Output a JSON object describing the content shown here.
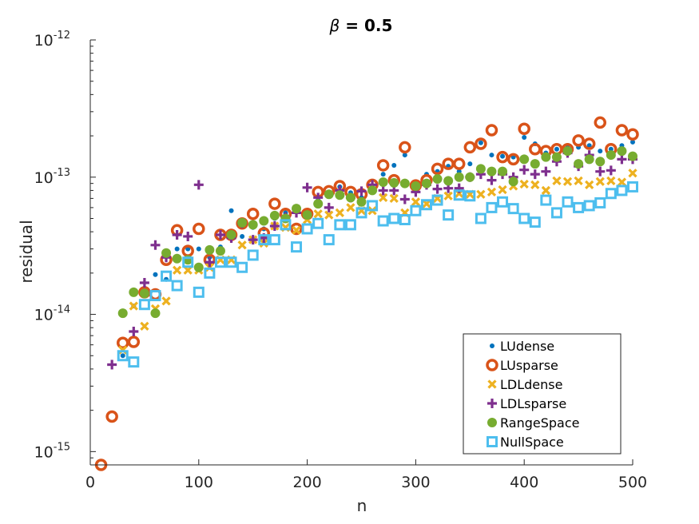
{
  "chart_data": {
    "type": "scatter",
    "title_symbol": "β",
    "title_rest": " = 0.5",
    "xlabel": "n",
    "ylabel": "residual",
    "x_scale": "linear",
    "y_scale": "log",
    "xlim": [
      0,
      500
    ],
    "ylim": [
      8e-16,
      1e-12
    ],
    "x_ticks": [
      0,
      100,
      200,
      300,
      400,
      500
    ],
    "x_tick_labels": [
      "0",
      "100",
      "200",
      "300",
      "400",
      "500"
    ],
    "y_ticks": [
      1e-15,
      1e-14,
      1e-13,
      1e-12
    ],
    "y_tick_labels": [
      {
        "base": "10",
        "exp": "-15"
      },
      {
        "base": "10",
        "exp": "-14"
      },
      {
        "base": "10",
        "exp": "-13"
      },
      {
        "base": "10",
        "exp": "-12"
      }
    ],
    "grid": false,
    "legend_position": "bottom-right",
    "x": [
      10,
      20,
      30,
      40,
      50,
      60,
      70,
      80,
      90,
      100,
      110,
      120,
      130,
      140,
      150,
      160,
      170,
      180,
      190,
      200,
      210,
      220,
      230,
      240,
      250,
      260,
      270,
      280,
      290,
      300,
      310,
      320,
      330,
      340,
      350,
      360,
      370,
      380,
      390,
      400,
      410,
      420,
      430,
      440,
      450,
      460,
      470,
      480,
      490,
      500
    ],
    "series": [
      {
        "name": "LUdense",
        "marker": "dot",
        "color": "#0072BD",
        "values": [
          null,
          null,
          5e-15,
          1.15e-14,
          1.5e-14,
          1.95e-14,
          1.8e-14,
          3e-14,
          3e-14,
          3e-14,
          2.6e-14,
          3.1e-14,
          5.7e-14,
          3.7e-14,
          4.3e-14,
          4.2e-14,
          5e-14,
          5.5e-14,
          6e-14,
          5.2e-14,
          6.8e-14,
          7.5e-14,
          8.5e-14,
          7.7e-14,
          7.1e-14,
          8.5e-14,
          1.05e-13,
          1.22e-13,
          1.45e-13,
          8.2e-14,
          1.05e-13,
          1.1e-13,
          1.2e-13,
          1.1e-13,
          1.25e-13,
          1.78e-13,
          1.45e-13,
          1.42e-13,
          1.4e-13,
          1.95e-13,
          1.75e-13,
          1.5e-13,
          1.6e-13,
          1.7e-13,
          1.65e-13,
          1.7e-13,
          1.55e-13,
          1.6e-13,
          1.7e-13,
          1.8e-13
        ]
      },
      {
        "name": "LUsparse",
        "marker": "circle",
        "color": "#D95319",
        "values": [
          8e-16,
          1.8e-15,
          6.2e-15,
          6.3e-15,
          1.45e-14,
          1.4e-14,
          2.5e-14,
          4.1e-14,
          2.9e-14,
          4.2e-14,
          2.5e-14,
          3.8e-14,
          3.8e-14,
          4.6e-14,
          5.4e-14,
          3.9e-14,
          6.4e-14,
          5.4e-14,
          4.2e-14,
          5.4e-14,
          7.8e-14,
          7.9e-14,
          8.6e-14,
          7.8e-14,
          7.5e-14,
          8.8e-14,
          1.22e-13,
          9.5e-14,
          1.65e-13,
          8.7e-14,
          9.5e-14,
          1.15e-13,
          1.25e-13,
          1.25e-13,
          1.65e-13,
          1.75e-13,
          2.2e-13,
          1.4e-13,
          1.35e-13,
          2.25e-13,
          1.6e-13,
          1.55e-13,
          1.6e-13,
          1.6e-13,
          1.85e-13,
          1.75e-13,
          2.5e-13,
          1.6e-13,
          2.2e-13,
          2.05e-13
        ]
      },
      {
        "name": "LDLdense",
        "marker": "x",
        "color": "#EDB120",
        "values": [
          null,
          null,
          5.5e-15,
          1.15e-14,
          8.2e-15,
          1.1e-14,
          1.25e-14,
          2.1e-14,
          2.1e-14,
          2.1e-14,
          2.2e-14,
          2.5e-14,
          2.5e-14,
          3.2e-14,
          3.5e-14,
          3.3e-14,
          4.4e-14,
          4.3e-14,
          4.1e-14,
          4.9e-14,
          5.4e-14,
          5.3e-14,
          5.5e-14,
          6e-14,
          5.7e-14,
          5.7e-14,
          7.1e-14,
          7e-14,
          5.5e-14,
          6.6e-14,
          6.4e-14,
          7e-14,
          7.3e-14,
          7.6e-14,
          7.5e-14,
          7.5e-14,
          7.8e-14,
          8.1e-14,
          8.6e-14,
          8.9e-14,
          8.8e-14,
          8e-14,
          9.4e-14,
          9.3e-14,
          9.4e-14,
          8.8e-14,
          9.3e-14,
          9.4e-14,
          9.2e-14,
          1.07e-13
        ]
      },
      {
        "name": "LDLsparse",
        "marker": "plus",
        "color": "#7E2F8E",
        "values": [
          null,
          4.3e-15,
          null,
          7.5e-15,
          1.7e-14,
          3.2e-14,
          2.6e-14,
          3.8e-14,
          3.7e-14,
          8.8e-14,
          2.4e-14,
          3.8e-14,
          3.6e-14,
          4.6e-14,
          3.5e-14,
          3.6e-14,
          4.4e-14,
          5.1e-14,
          5.5e-14,
          8.4e-14,
          7.1e-14,
          6e-14,
          8e-14,
          7.1e-14,
          7.9e-14,
          8.8e-14,
          8e-14,
          8e-14,
          6.9e-14,
          7.8e-14,
          8.8e-14,
          8.2e-14,
          8.3e-14,
          8.3e-14,
          1e-13,
          1.05e-13,
          9.5e-14,
          1.05e-13,
          1e-13,
          1.13e-13,
          1.05e-13,
          1.1e-13,
          1.3e-13,
          1.5e-13,
          1.2e-13,
          1.45e-13,
          1.1e-13,
          1.12e-13,
          1.35e-13,
          1.35e-13
        ]
      },
      {
        "name": "RangeSpace",
        "marker": "filled-circle",
        "color": "#77AC30",
        "values": [
          null,
          null,
          1.02e-14,
          1.45e-14,
          1.42e-14,
          1.02e-14,
          2.8e-14,
          2.55e-14,
          2.5e-14,
          2.2e-14,
          2.95e-14,
          2.9e-14,
          3.8e-14,
          4.65e-14,
          4.5e-14,
          4.8e-14,
          5.25e-14,
          5e-14,
          5.9e-14,
          5.3e-14,
          6.4e-14,
          7.5e-14,
          7.4e-14,
          7.1e-14,
          6.6e-14,
          8e-14,
          9.2e-14,
          9.1e-14,
          9e-14,
          8.6e-14,
          9e-14,
          9.7e-14,
          9.4e-14,
          1e-13,
          1e-13,
          1.15e-13,
          1.1e-13,
          1.1e-13,
          9.3e-14,
          1.35e-13,
          1.25e-13,
          1.4e-13,
          1.4e-13,
          1.55e-13,
          1.25e-13,
          1.35e-13,
          1.3e-13,
          1.45e-13,
          1.55e-13,
          1.42e-13
        ]
      },
      {
        "name": "NullSpace",
        "marker": "square",
        "color": "#4DBEEE",
        "values": [
          null,
          null,
          5e-15,
          4.5e-15,
          1.18e-14,
          1.37e-14,
          1.9e-14,
          1.62e-14,
          2.4e-14,
          1.45e-14,
          2e-14,
          2.4e-14,
          2.4e-14,
          2.2e-14,
          2.7e-14,
          3.5e-14,
          3.5e-14,
          4.5e-14,
          3.1e-14,
          4.2e-14,
          4.6e-14,
          3.5e-14,
          4.5e-14,
          4.5e-14,
          5.5e-14,
          6.2e-14,
          4.8e-14,
          5e-14,
          4.9e-14,
          5.7e-14,
          6.3e-14,
          6.8e-14,
          5.3e-14,
          7.4e-14,
          7.3e-14,
          5e-14,
          6e-14,
          6.6e-14,
          5.9e-14,
          5e-14,
          4.7e-14,
          6.8e-14,
          5.5e-14,
          6.6e-14,
          6e-14,
          6.2e-14,
          6.5e-14,
          7.6e-14,
          8e-14,
          8.5e-14
        ]
      }
    ]
  }
}
